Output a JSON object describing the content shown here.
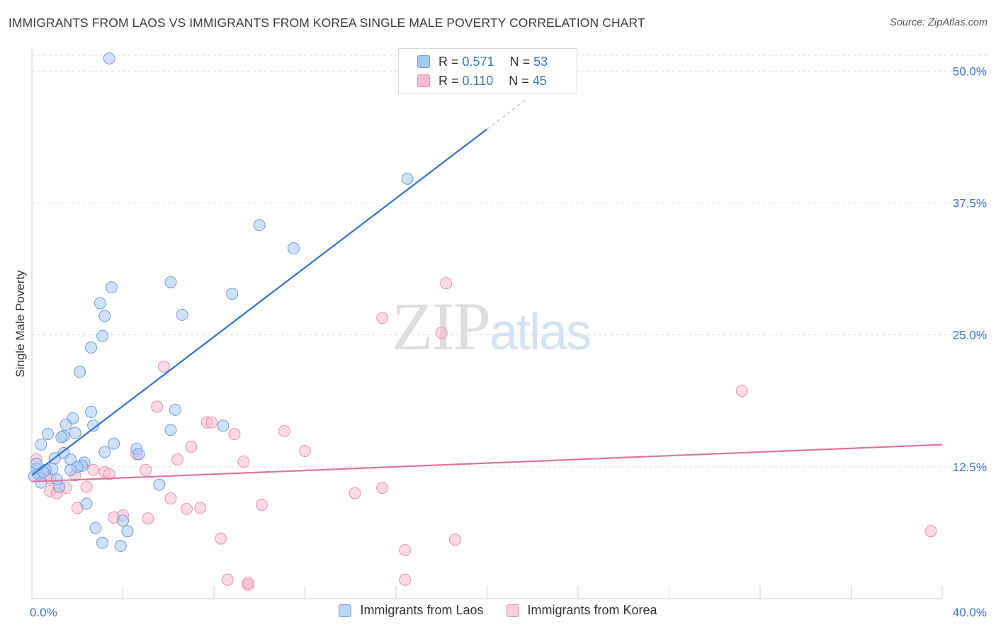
{
  "header": {
    "title": "IMMIGRANTS FROM LAOS VS IMMIGRANTS FROM KOREA SINGLE MALE POVERTY CORRELATION CHART",
    "source": "Source: ZipAtlas.com"
  },
  "watermark": {
    "zip": "ZIP",
    "atlas": "atlas"
  },
  "legend": {
    "rows": [
      {
        "r_label": "R = ",
        "r_value": "0.571",
        "n_label": "N = ",
        "n_value": "53"
      },
      {
        "r_label": "R = ",
        "r_value": "0.110",
        "n_label": "N = ",
        "n_value": "45"
      }
    ]
  },
  "bottom_legend": {
    "laos": "Immigrants from Laos",
    "korea": "Immigrants from Korea"
  },
  "colors": {
    "laos_fill": "#a9c8f0",
    "laos_stroke": "#6b9be0",
    "laos_line": "#2f72d0",
    "korea_fill": "#f6bcd0",
    "korea_stroke": "#e98fae",
    "korea_line": "#e0729a",
    "tick_text": "#3b74c9",
    "grid": "#dddddd"
  },
  "chart_data": {
    "type": "scatter",
    "title": "IMMIGRANTS FROM LAOS VS IMMIGRANTS FROM KOREA SINGLE MALE POVERTY CORRELATION CHART",
    "xlabel": "",
    "ylabel": "Single Male Poverty",
    "xlim": [
      0,
      40
    ],
    "ylim": [
      0,
      50
    ],
    "x_tick_labels": [
      "0.0%",
      "40.0%"
    ],
    "y_ticks": [
      12.5,
      25.0,
      37.5,
      50.0
    ],
    "y_tick_labels": [
      "12.5%",
      "25.0%",
      "37.5%",
      "50.0%"
    ],
    "grid": true,
    "legend_position": "top-center",
    "series": [
      {
        "name": "Immigrants from Laos",
        "points": [
          [
            3.4,
            51.2
          ],
          [
            16.5,
            39.8
          ],
          [
            10.0,
            35.4
          ],
          [
            11.5,
            33.2
          ],
          [
            3.5,
            29.5
          ],
          [
            6.1,
            30.0
          ],
          [
            8.8,
            28.9
          ],
          [
            3.0,
            28.0
          ],
          [
            3.2,
            26.8
          ],
          [
            6.6,
            26.9
          ],
          [
            3.1,
            24.9
          ],
          [
            2.6,
            23.8
          ],
          [
            2.1,
            21.5
          ],
          [
            6.3,
            17.9
          ],
          [
            2.6,
            17.7
          ],
          [
            1.8,
            17.1
          ],
          [
            1.5,
            16.5
          ],
          [
            6.1,
            16.0
          ],
          [
            2.7,
            16.4
          ],
          [
            8.4,
            16.4
          ],
          [
            1.9,
            15.7
          ],
          [
            0.7,
            15.6
          ],
          [
            1.4,
            15.4
          ],
          [
            1.3,
            15.3
          ],
          [
            0.4,
            14.6
          ],
          [
            3.6,
            14.7
          ],
          [
            4.6,
            14.2
          ],
          [
            1.4,
            13.8
          ],
          [
            3.2,
            13.9
          ],
          [
            4.7,
            13.7
          ],
          [
            1.0,
            13.3
          ],
          [
            1.7,
            13.2
          ],
          [
            2.3,
            12.9
          ],
          [
            2.2,
            12.6
          ],
          [
            0.9,
            12.3
          ],
          [
            2.0,
            12.5
          ],
          [
            0.6,
            12.2
          ],
          [
            1.7,
            12.2
          ],
          [
            0.2,
            12.3
          ],
          [
            0.1,
            11.6
          ],
          [
            0.3,
            11.8
          ],
          [
            0.4,
            11.0
          ],
          [
            5.6,
            10.8
          ],
          [
            1.2,
            10.6
          ],
          [
            2.4,
            9.0
          ],
          [
            2.8,
            6.7
          ],
          [
            4.2,
            6.4
          ],
          [
            4.0,
            7.4
          ],
          [
            3.1,
            5.3
          ],
          [
            3.9,
            5.0
          ],
          [
            0.2,
            12.8
          ],
          [
            0.5,
            12.0
          ],
          [
            1.1,
            11.3
          ]
        ],
        "trend": {
          "x0": 0,
          "y0": 11.7,
          "x1": 20.0,
          "y1": 44.5
        }
      },
      {
        "name": "Immigrants from Korea",
        "points": [
          [
            18.2,
            29.9
          ],
          [
            15.4,
            26.6
          ],
          [
            18.0,
            25.2
          ],
          [
            5.8,
            22.0
          ],
          [
            31.2,
            19.7
          ],
          [
            5.5,
            18.2
          ],
          [
            7.7,
            16.7
          ],
          [
            7.9,
            16.7
          ],
          [
            11.1,
            15.9
          ],
          [
            8.9,
            15.6
          ],
          [
            7.0,
            14.4
          ],
          [
            12.0,
            14.0
          ],
          [
            4.6,
            13.7
          ],
          [
            9.3,
            13.0
          ],
          [
            6.4,
            13.2
          ],
          [
            0.2,
            13.2
          ],
          [
            5.0,
            12.2
          ],
          [
            2.7,
            12.2
          ],
          [
            3.2,
            12.0
          ],
          [
            1.9,
            11.7
          ],
          [
            3.4,
            11.8
          ],
          [
            0.6,
            11.8
          ],
          [
            0.8,
            11.4
          ],
          [
            2.4,
            10.6
          ],
          [
            1.5,
            10.5
          ],
          [
            15.4,
            10.5
          ],
          [
            14.2,
            10.0
          ],
          [
            0.8,
            10.2
          ],
          [
            1.1,
            10.0
          ],
          [
            6.1,
            9.5
          ],
          [
            10.1,
            8.9
          ],
          [
            2.0,
            8.6
          ],
          [
            6.8,
            8.5
          ],
          [
            7.4,
            8.6
          ],
          [
            3.6,
            7.7
          ],
          [
            4.0,
            7.9
          ],
          [
            5.1,
            7.6
          ],
          [
            18.6,
            5.6
          ],
          [
            8.3,
            5.7
          ],
          [
            39.5,
            6.4
          ],
          [
            16.4,
            4.6
          ],
          [
            8.6,
            1.8
          ],
          [
            9.5,
            1.3
          ],
          [
            9.5,
            1.5
          ],
          [
            16.4,
            1.8
          ]
        ],
        "trend": {
          "x0": 0,
          "y0": 11.1,
          "x1": 40.0,
          "y1": 14.6
        }
      }
    ]
  }
}
